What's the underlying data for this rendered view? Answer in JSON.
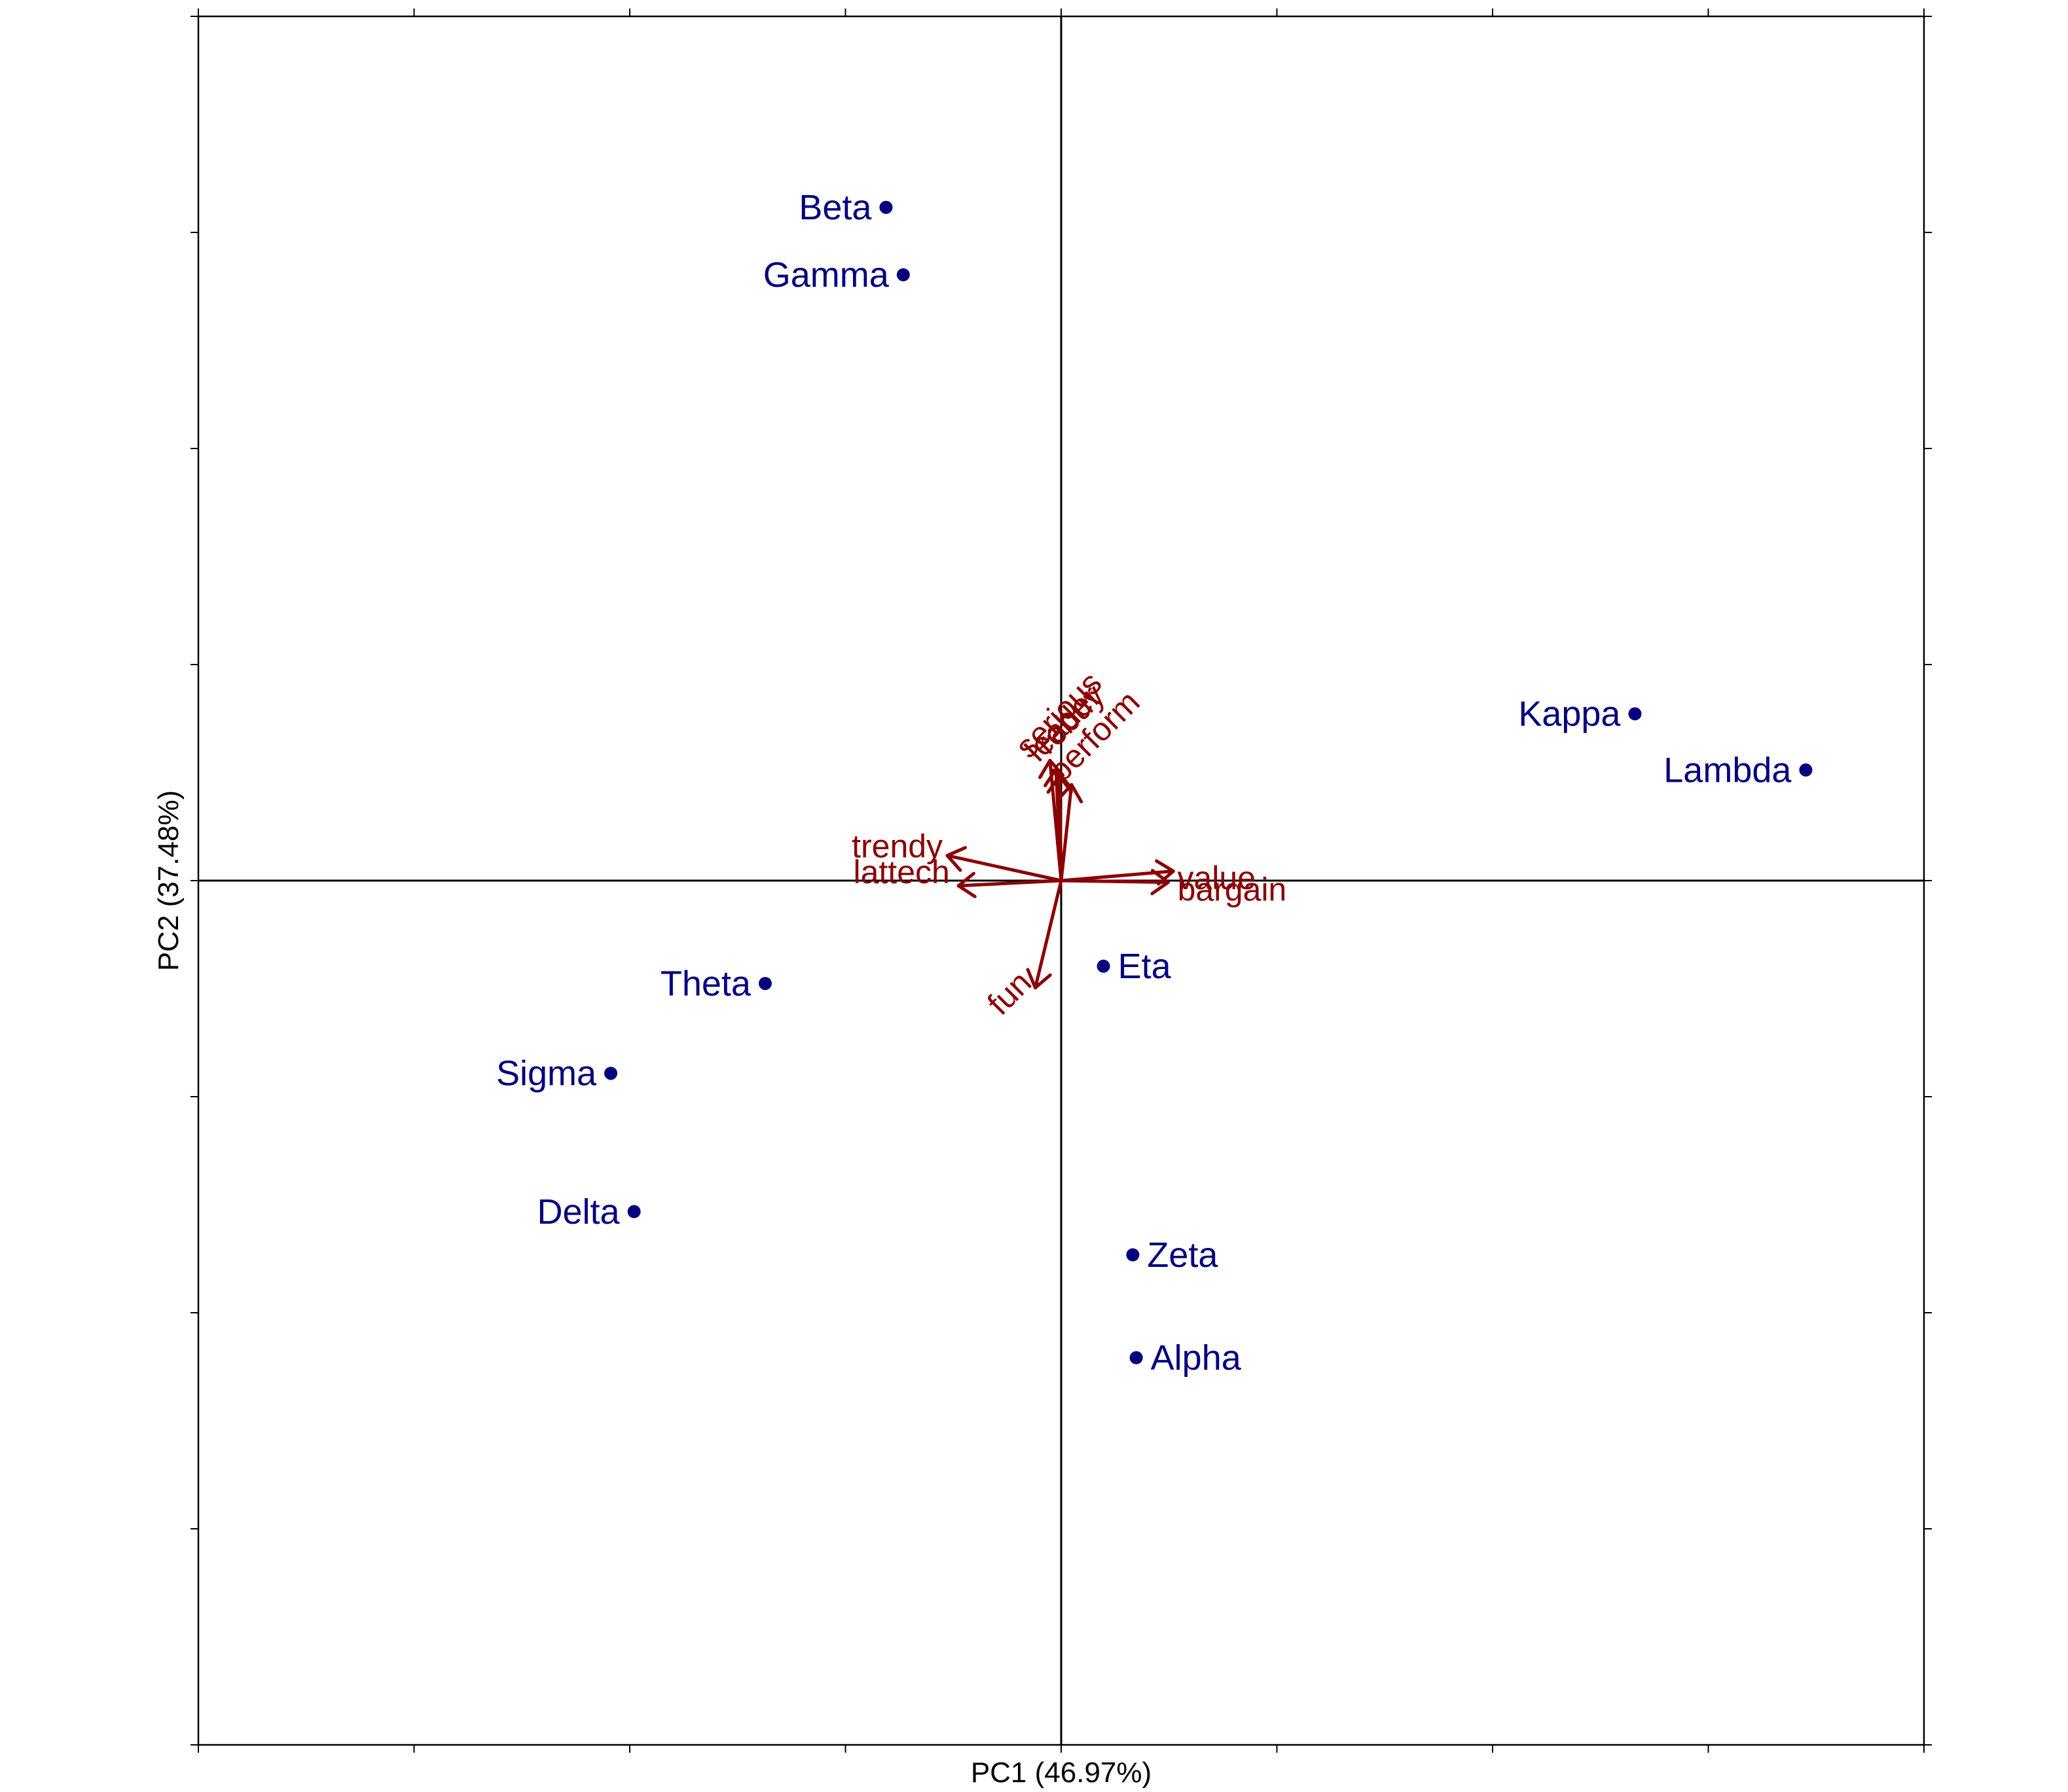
{
  "chart_data": {
    "type": "scatter",
    "subtype": "pca-biplot",
    "xlabel": "PC1 (46.97%)",
    "ylabel": "PC2 (37.48%)",
    "xlim": [
      -1.0,
      1.0
    ],
    "ylim": [
      -1.0,
      1.0
    ],
    "grid": false,
    "reference_lines": {
      "x": 0,
      "y": 0
    },
    "colors": {
      "points": "#00007F",
      "loadings": "#8B0000",
      "frame": "#000000"
    },
    "points": [
      {
        "name": "Beta",
        "x": -0.203,
        "y": 0.779,
        "label_side": "left"
      },
      {
        "name": "Gamma",
        "x": -0.183,
        "y": 0.701,
        "label_side": "left"
      },
      {
        "name": "Kappa",
        "x": 0.665,
        "y": 0.193,
        "label_side": "left"
      },
      {
        "name": "Lambda",
        "x": 0.863,
        "y": 0.128,
        "label_side": "left"
      },
      {
        "name": "Theta",
        "x": -0.343,
        "y": -0.119,
        "label_side": "left"
      },
      {
        "name": "Eta",
        "x": 0.049,
        "y": -0.099,
        "label_side": "right"
      },
      {
        "name": "Sigma",
        "x": -0.522,
        "y": -0.223,
        "label_side": "left"
      },
      {
        "name": "Delta",
        "x": -0.495,
        "y": -0.383,
        "label_side": "left"
      },
      {
        "name": "Zeta",
        "x": 0.083,
        "y": -0.433,
        "label_side": "right"
      },
      {
        "name": "Alpha",
        "x": 0.087,
        "y": -0.552,
        "label_side": "right"
      }
    ],
    "loadings": [
      {
        "name": "serious",
        "x": -0.013,
        "y": 0.139,
        "label_x": -0.001,
        "label_y": 0.19,
        "angle": -45
      },
      {
        "name": "leader",
        "x": -0.006,
        "y": 0.129,
        "label_x": 0.004,
        "label_y": 0.18,
        "angle": -45
      },
      {
        "name": "rebuy",
        "x": -0.002,
        "y": 0.121,
        "label_x": 0.012,
        "label_y": 0.185,
        "angle": -45
      },
      {
        "name": "perform",
        "x": 0.012,
        "y": 0.111,
        "label_x": 0.04,
        "label_y": 0.165,
        "angle": -45
      },
      {
        "name": "trendy",
        "x": -0.132,
        "y": 0.029,
        "label_x": -0.19,
        "label_y": 0.037,
        "angle": 0
      },
      {
        "name": "lattech",
        "x": -0.119,
        "y": -0.006,
        "label_x": -0.185,
        "label_y": 0.007,
        "angle": 0
      },
      {
        "name": "value",
        "x": 0.13,
        "y": 0.011,
        "label_x": 0.18,
        "label_y": 0.0,
        "angle": 0
      },
      {
        "name": "bargain",
        "x": 0.124,
        "y": -0.002,
        "label_x": 0.198,
        "label_y": -0.013,
        "angle": 0
      },
      {
        "name": "fun",
        "x": -0.03,
        "y": -0.124,
        "label_x": -0.058,
        "label_y": -0.132,
        "angle": -45
      }
    ]
  }
}
